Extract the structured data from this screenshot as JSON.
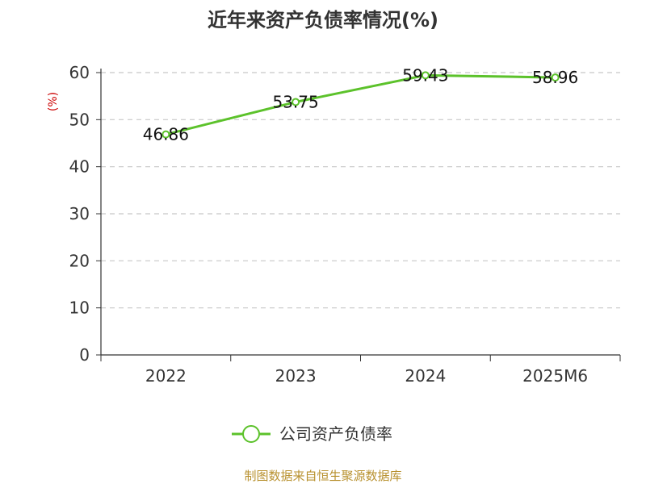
{
  "chart_data": {
    "type": "line",
    "title": "近年来资产负债率情况(%)",
    "xlabel": "",
    "ylabel": "(%)",
    "categories": [
      "2022",
      "2023",
      "2024",
      "2025M6"
    ],
    "series": [
      {
        "name": "公司资产负债率",
        "values": [
          46.86,
          53.75,
          59.43,
          58.96
        ],
        "labels": [
          "46.86",
          "53.75",
          "59.43",
          "58.96"
        ],
        "color": "#5cc22b"
      }
    ],
    "ylim": [
      0,
      60
    ],
    "yticks": [
      "0",
      "10",
      "20",
      "30",
      "40",
      "50",
      "60"
    ],
    "grid": true,
    "legend": "bottom"
  },
  "source": "制图数据来自恒生聚源数据库"
}
